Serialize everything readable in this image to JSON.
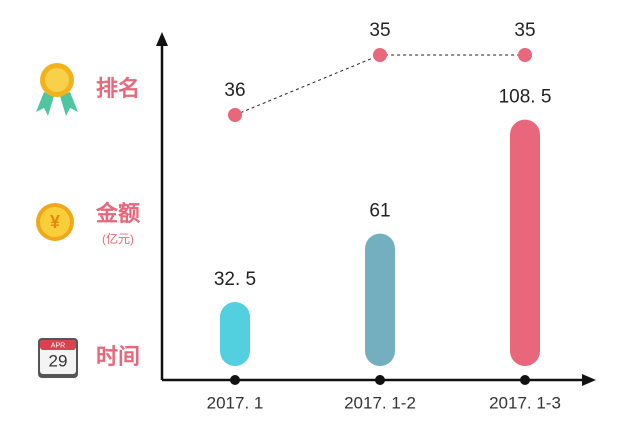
{
  "chart_data": {
    "type": "bar",
    "categories": [
      "2017. 1",
      "2017. 1-2",
      "2017. 1-3"
    ],
    "xlabel": "时间",
    "series": [
      {
        "name": "排名",
        "type": "line",
        "axis": "y2",
        "color": "#e8677a",
        "values": [
          36,
          35,
          35
        ]
      },
      {
        "name": "金额",
        "unit": "(亿元)",
        "type": "bar",
        "colors": [
          "#52d0df",
          "#74afbf",
          "#e8677a"
        ],
        "values": [
          32.5,
          61,
          108.5
        ],
        "value_labels": [
          "32. 5",
          "61",
          "108. 5"
        ]
      }
    ],
    "icons": {
      "calendar_month": "APR",
      "calendar_day": "29",
      "coin": "¥"
    },
    "ylim": [
      0,
      120
    ],
    "y2lim": [
      37,
      34.5
    ],
    "grid": false
  }
}
